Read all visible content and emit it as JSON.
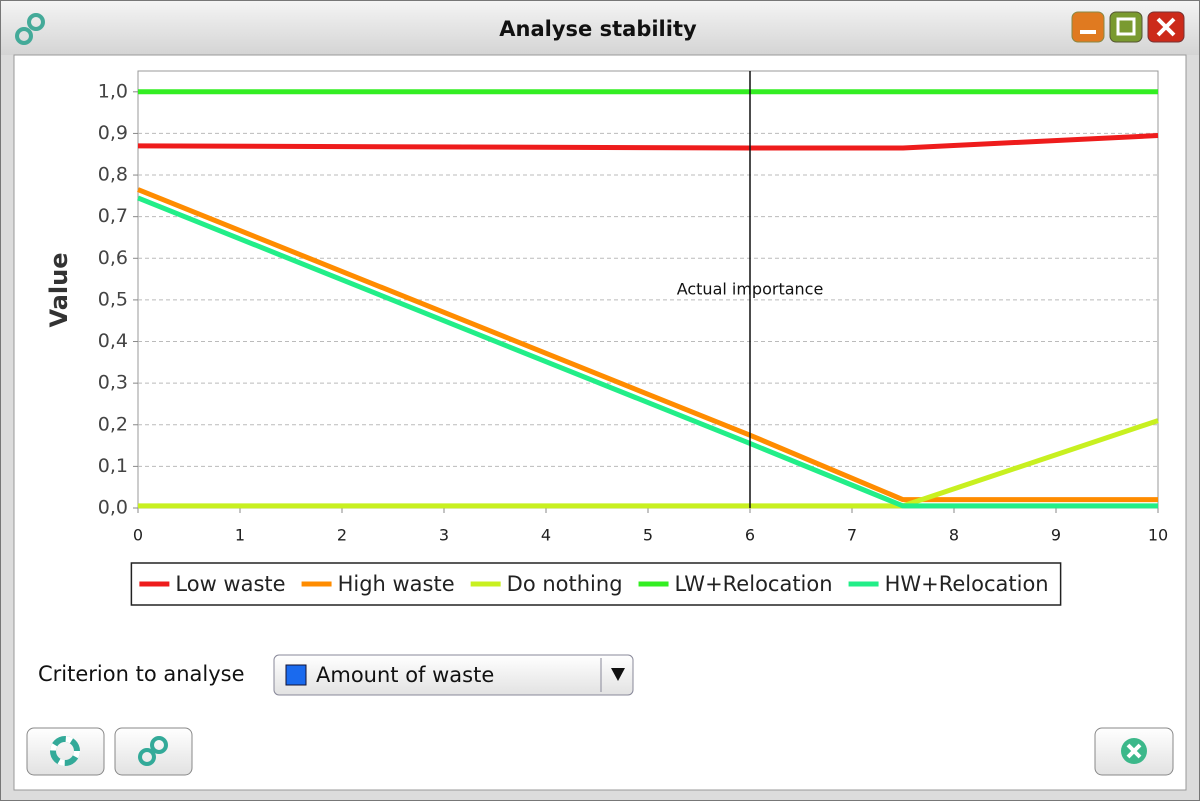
{
  "window": {
    "title": "Analyse stability"
  },
  "chart_data": {
    "type": "line",
    "y_label": "Value",
    "x": [
      0,
      6,
      7.5,
      10
    ],
    "series": [
      {
        "name": "Low waste",
        "color": "#ee1c1c",
        "values": [
          0.87,
          0.865,
          0.865,
          0.895
        ]
      },
      {
        "name": "High waste",
        "color": "#ff8c00",
        "values": [
          0.765,
          0.175,
          0.02,
          0.02
        ]
      },
      {
        "name": "Do nothing",
        "color": "#c8f020",
        "values": [
          0.005,
          0.005,
          0.005,
          0.21
        ]
      },
      {
        "name": "LW+Relocation",
        "color": "#33ee22",
        "values": [
          1.0,
          1.0,
          1.0,
          1.0
        ]
      },
      {
        "name": "HW+Relocation",
        "color": "#22ee88",
        "values": [
          0.745,
          0.155,
          0.005,
          0.005
        ]
      }
    ],
    "xlim": [
      0,
      10
    ],
    "xticks": [
      0,
      1,
      2,
      3,
      4,
      5,
      6,
      7,
      8,
      9,
      10
    ],
    "ylim": [
      0,
      1.05
    ],
    "yticks": [
      {
        "value": 0,
        "label": "0,0"
      },
      {
        "value": 0.1,
        "label": "0,1"
      },
      {
        "value": 0.2,
        "label": "0,2"
      },
      {
        "value": 0.3,
        "label": "0,3"
      },
      {
        "value": 0.4,
        "label": "0,4"
      },
      {
        "value": 0.5,
        "label": "0,5"
      },
      {
        "value": 0.6,
        "label": "0,6"
      },
      {
        "value": 0.7,
        "label": "0,7"
      },
      {
        "value": 0.8,
        "label": "0,8"
      },
      {
        "value": 0.9,
        "label": "0,9"
      },
      {
        "value": 1.0,
        "label": "1,0"
      }
    ],
    "grid": true,
    "legend": "bottom",
    "annotation": {
      "text": "Actual importance",
      "x": 6
    }
  },
  "controls": {
    "criterion_label": "Criterion to analyse",
    "criterion_value": "Amount of waste"
  }
}
